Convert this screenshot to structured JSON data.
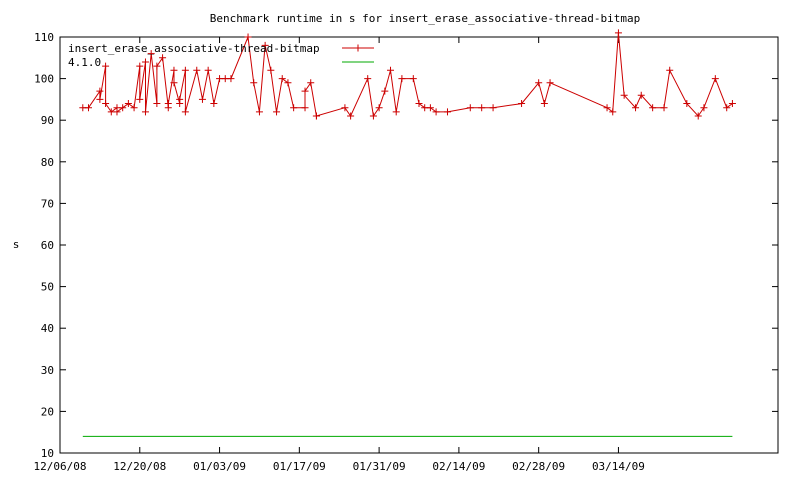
{
  "chart_data": {
    "type": "line",
    "title": "Benchmark runtime in s for insert_erase_associative-thread-bitmap",
    "ylabel": "s",
    "xlabel": "",
    "ylim": [
      10,
      110
    ],
    "y_ticks": [
      10,
      20,
      30,
      40,
      50,
      60,
      70,
      80,
      90,
      100,
      110
    ],
    "xlim": [
      "2008-12-06",
      "2009-04-11"
    ],
    "x_ticks": [
      "2008-12-06",
      "2008-12-20",
      "2009-01-03",
      "2009-01-17",
      "2009-01-31",
      "2009-02-14",
      "2009-02-28",
      "2009-03-14"
    ],
    "x_tick_labels": [
      "12/06/08",
      "12/20/08",
      "01/03/09",
      "01/17/09",
      "01/31/09",
      "02/14/09",
      "02/28/09",
      "03/14/09"
    ],
    "grid": false,
    "legend_position": "top-left",
    "series": [
      {
        "name": "insert_erase_associative-thread-bitmap",
        "color": "#cc0000",
        "marker": "plus",
        "x": [
          "2008-12-10",
          "2008-12-11",
          "2008-12-13",
          "2008-12-13",
          "2008-12-14",
          "2008-12-14",
          "2008-12-15",
          "2008-12-16",
          "2008-12-16",
          "2008-12-17",
          "2008-12-18",
          "2008-12-19",
          "2008-12-20",
          "2008-12-20",
          "2008-12-21",
          "2008-12-21",
          "2008-12-22",
          "2008-12-23",
          "2008-12-23",
          "2008-12-24",
          "2008-12-25",
          "2008-12-25",
          "2008-12-26",
          "2008-12-26",
          "2008-12-27",
          "2008-12-27",
          "2008-12-28",
          "2008-12-28",
          "2008-12-30",
          "2008-12-31",
          "2009-01-01",
          "2009-01-02",
          "2009-01-03",
          "2009-01-04",
          "2009-01-05",
          "2009-01-08",
          "2009-01-09",
          "2009-01-10",
          "2009-01-11",
          "2009-01-12",
          "2009-01-13",
          "2009-01-14",
          "2009-01-15",
          "2009-01-16",
          "2009-01-18",
          "2009-01-18",
          "2009-01-19",
          "2009-01-20",
          "2009-01-20",
          "2009-01-25",
          "2009-01-26",
          "2009-01-29",
          "2009-01-30",
          "2009-01-31",
          "2009-02-01",
          "2009-02-02",
          "2009-02-03",
          "2009-02-04",
          "2009-02-06",
          "2009-02-07",
          "2009-02-08",
          "2009-02-09",
          "2009-02-10",
          "2009-02-12",
          "2009-02-16",
          "2009-02-18",
          "2009-02-20",
          "2009-02-25",
          "2009-02-28",
          "2009-03-01",
          "2009-03-02",
          "2009-03-12",
          "2009-03-13",
          "2009-03-14",
          "2009-03-15",
          "2009-03-17",
          "2009-03-18",
          "2009-03-20",
          "2009-03-22",
          "2009-03-23",
          "2009-03-26",
          "2009-03-28",
          "2009-03-29",
          "2009-03-31",
          "2009-04-02",
          "2009-04-03"
        ],
        "y": [
          93,
          93,
          97,
          95,
          103,
          94,
          92,
          93,
          92,
          93,
          94,
          93,
          103,
          95,
          104,
          92,
          106,
          94,
          103,
          105,
          93,
          94,
          102,
          99,
          94,
          95,
          102,
          92,
          102,
          95,
          102,
          94,
          100,
          100,
          100,
          110,
          99,
          92,
          108,
          102,
          92,
          100,
          99,
          93,
          93,
          97,
          99,
          91,
          91,
          93,
          91,
          100,
          91,
          93,
          97,
          102,
          92,
          100,
          100,
          94,
          93,
          93,
          92,
          92,
          93,
          93,
          93,
          94,
          99,
          94,
          99,
          93,
          92,
          111,
          96,
          93,
          96,
          93,
          93,
          102,
          94,
          91,
          93,
          100,
          93,
          94
        ]
      },
      {
        "name": "4.1.0",
        "color": "#00aa00",
        "x": [
          "2008-12-10",
          "2009-04-03"
        ],
        "y": [
          14,
          14
        ]
      }
    ]
  }
}
